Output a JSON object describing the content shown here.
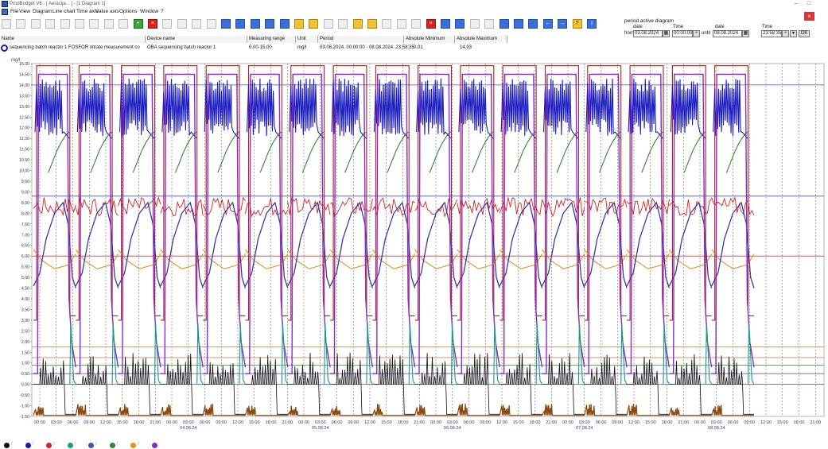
{
  "window": {
    "title": "ProdBudget V6 - [ Aeracija... ] - [1 Diagram 1]",
    "min": "–",
    "max": "□",
    "close": "×"
  },
  "menu": [
    "File",
    "View",
    "Diagram",
    "Line chart",
    "Time axis",
    "Value axis",
    "Options",
    "Window",
    "?"
  ],
  "toolbar_icons": [
    "new-icon",
    "open-icon",
    "save-icon",
    "print-icon",
    "preview-icon",
    "copy-icon",
    "paste-icon",
    "cut-icon",
    "undo-icon",
    "add-icon",
    "delete-icon",
    "chart-icon",
    "bar-icon",
    "grid-icon",
    "table-icon",
    "zoom-in-icon",
    "zoom-out-icon",
    "fit-icon",
    "pin-icon",
    "list-icon",
    "window-icon",
    "window2-icon",
    "zoom-icon",
    "scale-icon",
    "range-icon",
    "axis-icon",
    "cut2-icon",
    "copy2-icon",
    "paste2-icon",
    "delete2-icon",
    "filter-icon",
    "tool-icon",
    "export-icon",
    "import-icon",
    "grid2-icon",
    "split-icon",
    "tile-icon",
    "back-icon",
    "forward-icon",
    "help-icon",
    "info-icon"
  ],
  "period_panel": {
    "title": "period active diagram",
    "date_label": "date",
    "time_label": "Time",
    "from_label": "from",
    "until_label": "until",
    "from_date": "03.08.2024",
    "from_time": "00:00:00",
    "until_date": "08.08.2024",
    "until_time": "23:58:35",
    "apply_label": "OK"
  },
  "table": {
    "headers": [
      "Name",
      "Device name",
      "Measuring range",
      "Unit",
      "Period",
      "Absolute Minimum",
      "Absolute Maximum"
    ],
    "row": {
      "name": "sequencing batch reactor 1 FOSFOR nitrate measurement co",
      "device": "OBA sequencing batch reactor 1",
      "range": "0,00-15,00",
      "unit": "mg/l",
      "period": "03.08.2024. 00:00:00 - 08.08.2024. 23:58:35",
      "min": "0,01",
      "max": "14,93"
    }
  },
  "chart_data": {
    "type": "line",
    "ylabel": "mg/l",
    "ylim": [
      -1.5,
      15.0
    ],
    "y_ticks": [
      "15,00",
      "14,50",
      "14,00",
      "13,50",
      "13,00",
      "12,50",
      "12,00",
      "11,50",
      "11,00",
      "10,50",
      "10,00",
      "9,50",
      "9,00",
      "8,50",
      "8,00",
      "7,50",
      "7,00",
      "6,50",
      "6,00",
      "5,50",
      "5,00",
      "4,50",
      "4,00",
      "3,50",
      "3,00",
      "2,50",
      "2,00",
      "1,50",
      "1,00",
      "0,50",
      "0,00",
      "-0,50",
      "-1,00",
      "-1,50"
    ],
    "x_ticks": [
      "00:00",
      "03:00",
      "06:00",
      "09:00",
      "12:00",
      "15:00",
      "18:00",
      "21:00",
      "00:00",
      "03:00",
      "06:00",
      "09:00",
      "12:00",
      "15:00",
      "18:00",
      "21:00",
      "00:00",
      "03:00",
      "06:00",
      "09:00",
      "12:00",
      "15:00",
      "18:00",
      "21:00",
      "00:00",
      "03:00",
      "06:00",
      "09:00",
      "12:00",
      "15:00",
      "18:00",
      "21:00",
      "00:00",
      "03:00",
      "06:00",
      "09:00",
      "12:00",
      "15:00",
      "18:00",
      "21:00",
      "00:00",
      "03:00",
      "06:00",
      "09:00",
      "12:00",
      "15:00",
      "18:00",
      "21:00"
    ],
    "date_labels": [
      {
        "text": "04.08.24",
        "tick": 9
      },
      {
        "text": "05.08.24",
        "tick": 17
      },
      {
        "text": "06.08.24",
        "tick": 25
      },
      {
        "text": "07.08.24",
        "tick": 33
      },
      {
        "text": "08.08.24",
        "tick": 41
      }
    ],
    "cycles": 17,
    "reference_lines": [
      {
        "value": 14.0,
        "color": "#3a55b8"
      },
      {
        "value": 8.8,
        "color": "#3a55b8"
      },
      {
        "value": 6.0,
        "color": "#c04040"
      },
      {
        "value": 1.75,
        "color": "#d09040"
      },
      {
        "value": 1.25,
        "color": "#d07030"
      },
      {
        "value": 0.9,
        "color": "#50a050"
      },
      {
        "value": 0.5,
        "color": "#7a50c0"
      },
      {
        "value": 0.0,
        "color": "#3a55b8"
      }
    ],
    "series": [
      {
        "name": "",
        "color": "#1c1cc0",
        "values_desc": "oscillating 11.5–14.5 per cycle"
      },
      {
        "name": "",
        "color": "#b02020",
        "values_desc": "step 14.8 / drop to ~3"
      },
      {
        "name": "",
        "color": "#2a8a2a",
        "values_desc": "ramp 10 → 11.8"
      },
      {
        "name": "",
        "color": "#d82020",
        "values_desc": "noisy around 8.3"
      },
      {
        "name": "",
        "color": "#e8901a",
        "values_desc": "ramp 5.2 → 6"
      },
      {
        "name": "",
        "color": "#3a3aa8",
        "values_desc": "ramp 4.5 → 8.5"
      },
      {
        "name": "",
        "color": "#8a2ad0",
        "values_desc": "square 14.5 / 0.5"
      },
      {
        "name": "",
        "color": "#1a9a8a",
        "values_desc": "spikes to 3"
      },
      {
        "name": "",
        "color": "#111111",
        "values_desc": "spikes 0–1.5"
      },
      {
        "name": "",
        "color": "#8a4a10",
        "values_desc": "bursts near -1.5"
      }
    ]
  },
  "status_dots": [
    "#111",
    "#1a1ab0",
    "#d82020",
    "#1a9a8a",
    "#3a55b8",
    "#2a8a2a",
    "#e8901a",
    "#8a2ad0"
  ]
}
